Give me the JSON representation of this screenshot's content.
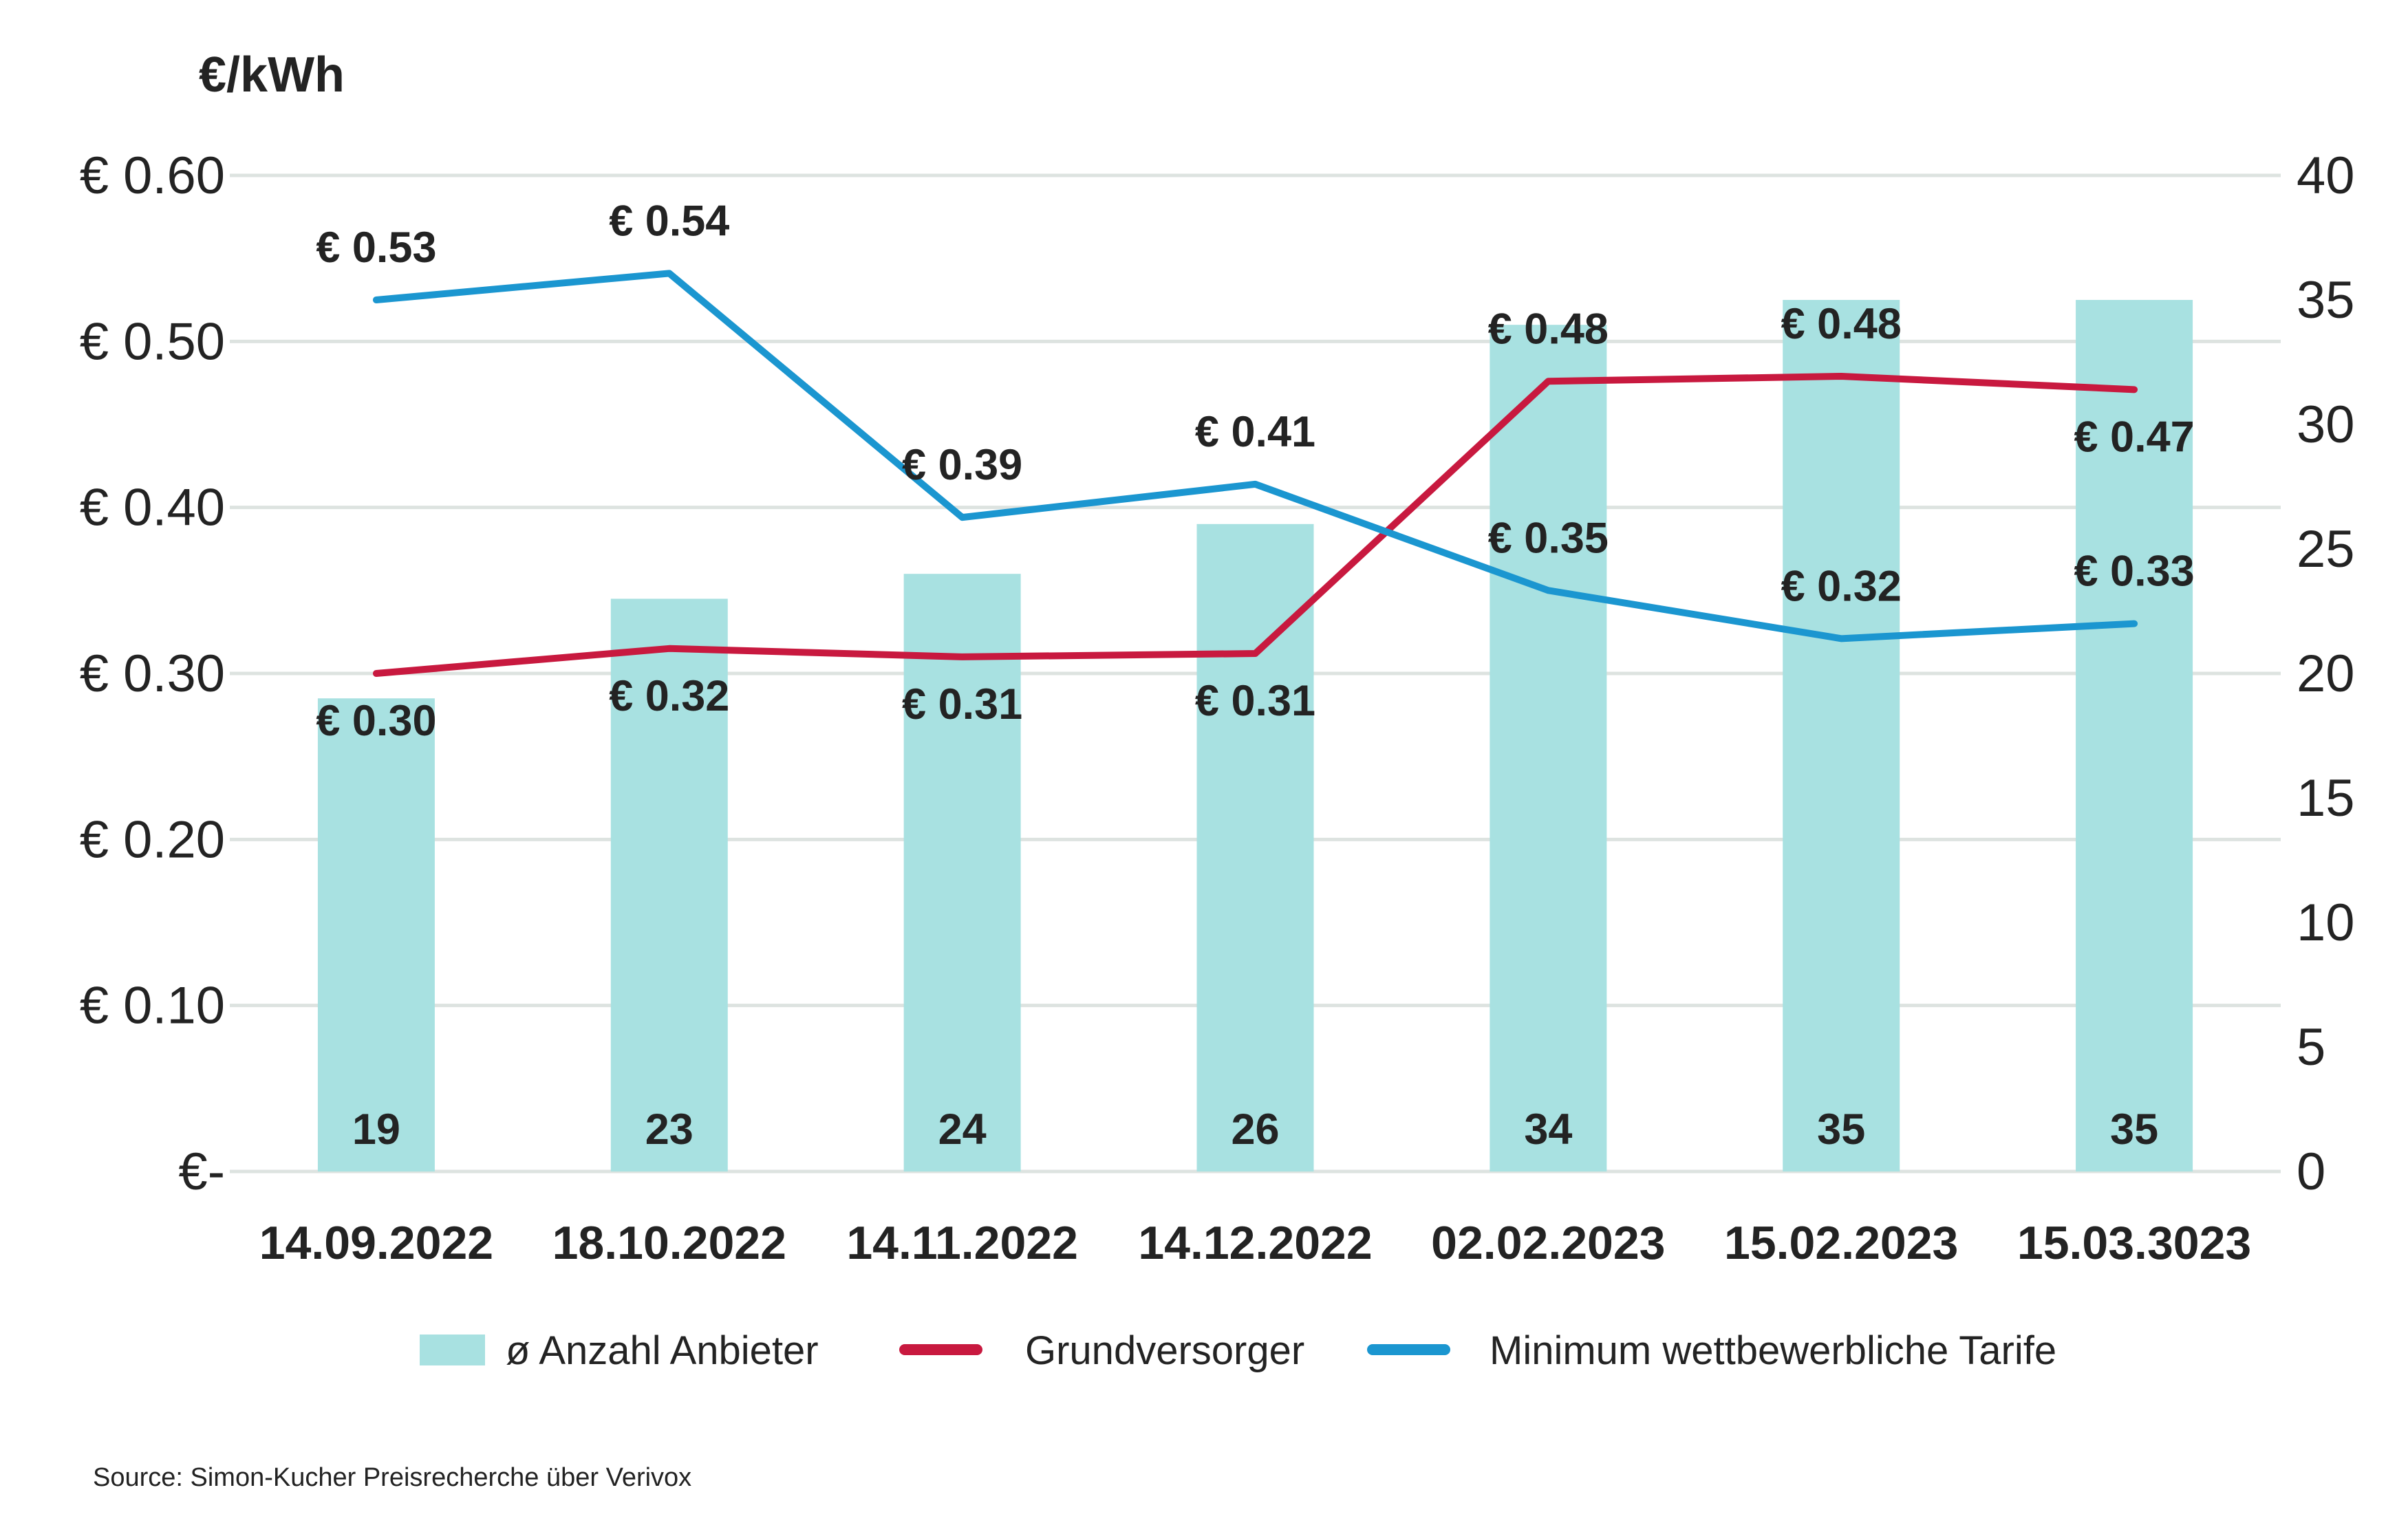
{
  "chart_data": {
    "type": "bar+line",
    "unit_label": "€/kWh",
    "categories": [
      "14.09.2022",
      "18.10.2022",
      "14.11.2022",
      "14.12.2022",
      "02.02.2023",
      "15.02.2023",
      "15.03.3023"
    ],
    "y_left": {
      "range": [
        0,
        0.6
      ],
      "ticks": [
        0,
        0.1,
        0.2,
        0.3,
        0.4,
        0.5,
        0.6
      ],
      "tick_labels": [
        "€-",
        "€ 0.10",
        "€ 0.20",
        "€ 0.30",
        "€ 0.40",
        "€ 0.50",
        "€ 0.60"
      ]
    },
    "y_right": {
      "range": [
        0,
        40
      ],
      "ticks": [
        0,
        5,
        10,
        15,
        20,
        25,
        30,
        35,
        40
      ],
      "tick_labels": [
        "0",
        "5",
        "10",
        "15",
        "20",
        "25",
        "30",
        "35",
        "40"
      ]
    },
    "grid": true,
    "legend_position": "bottom",
    "series": [
      {
        "name": "ø Anzahl Anbieter",
        "type": "bar",
        "axis": "right",
        "color": "#a8e1e1",
        "values": [
          19,
          23,
          24,
          26,
          34,
          35,
          35
        ],
        "labels": [
          "19",
          "23",
          "24",
          "26",
          "34",
          "35",
          "35"
        ]
      },
      {
        "name": "Grundversorger",
        "type": "line",
        "axis": "left",
        "color": "#c8193f",
        "values": [
          0.3,
          0.315,
          0.31,
          0.312,
          0.476,
          0.479,
          0.471
        ],
        "labels": [
          "€ 0.30",
          "€ 0.32",
          "€ 0.31",
          "€ 0.31",
          "€ 0.48",
          "€ 0.48",
          "€ 0.47"
        ],
        "label_side": [
          "below",
          "below",
          "below",
          "below",
          "above",
          "above",
          "below"
        ]
      },
      {
        "name": "Minimum wettbewerbliche Tarife",
        "type": "line",
        "axis": "left",
        "color": "#1b96d0",
        "values": [
          0.525,
          0.541,
          0.394,
          0.414,
          0.35,
          0.321,
          0.33
        ],
        "labels": [
          "€ 0.53",
          "€ 0.54",
          "€ 0.39",
          "€ 0.41",
          "€ 0.35",
          "€ 0.32",
          "€ 0.33"
        ],
        "label_side": [
          "above",
          "above",
          "above",
          "above",
          "above",
          "above",
          "above"
        ]
      }
    ]
  },
  "source": "Source: Simon-Kucher Preisrecherche über Verivox"
}
